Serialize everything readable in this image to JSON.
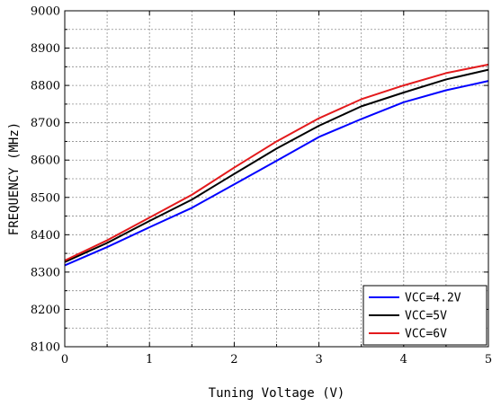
{
  "chart_data": {
    "type": "line",
    "xlabel": "Tuning Voltage (V)",
    "ylabel": "FREQUENCY (MHz)",
    "xlim": [
      0,
      5
    ],
    "ylim": [
      8100,
      9000
    ],
    "xticks": [
      "0",
      "1",
      "2",
      "3",
      "4",
      "5"
    ],
    "yticks": [
      "8100",
      "8200",
      "8300",
      "8400",
      "8500",
      "8600",
      "8700",
      "8800",
      "8900",
      "9000"
    ],
    "grid": true,
    "legend_position": "bottom-right",
    "x": [
      0,
      0.5,
      1,
      1.5,
      2,
      2.5,
      3,
      3.5,
      4,
      4.5,
      5
    ],
    "series": [
      {
        "name": "VCC=4.2V",
        "color": "#0000ff",
        "values": [
          8318,
          8367,
          8420,
          8472,
          8535,
          8598,
          8662,
          8710,
          8755,
          8787,
          8812
        ]
      },
      {
        "name": "VCC=5V",
        "color": "#000000",
        "values": [
          8327,
          8378,
          8437,
          8494,
          8563,
          8631,
          8692,
          8744,
          8781,
          8816,
          8842
        ]
      },
      {
        "name": "VCC=6V",
        "color": "#e31a1c",
        "values": [
          8331,
          8385,
          8446,
          8507,
          8580,
          8650,
          8712,
          8763,
          8800,
          8833,
          8856
        ]
      }
    ]
  }
}
